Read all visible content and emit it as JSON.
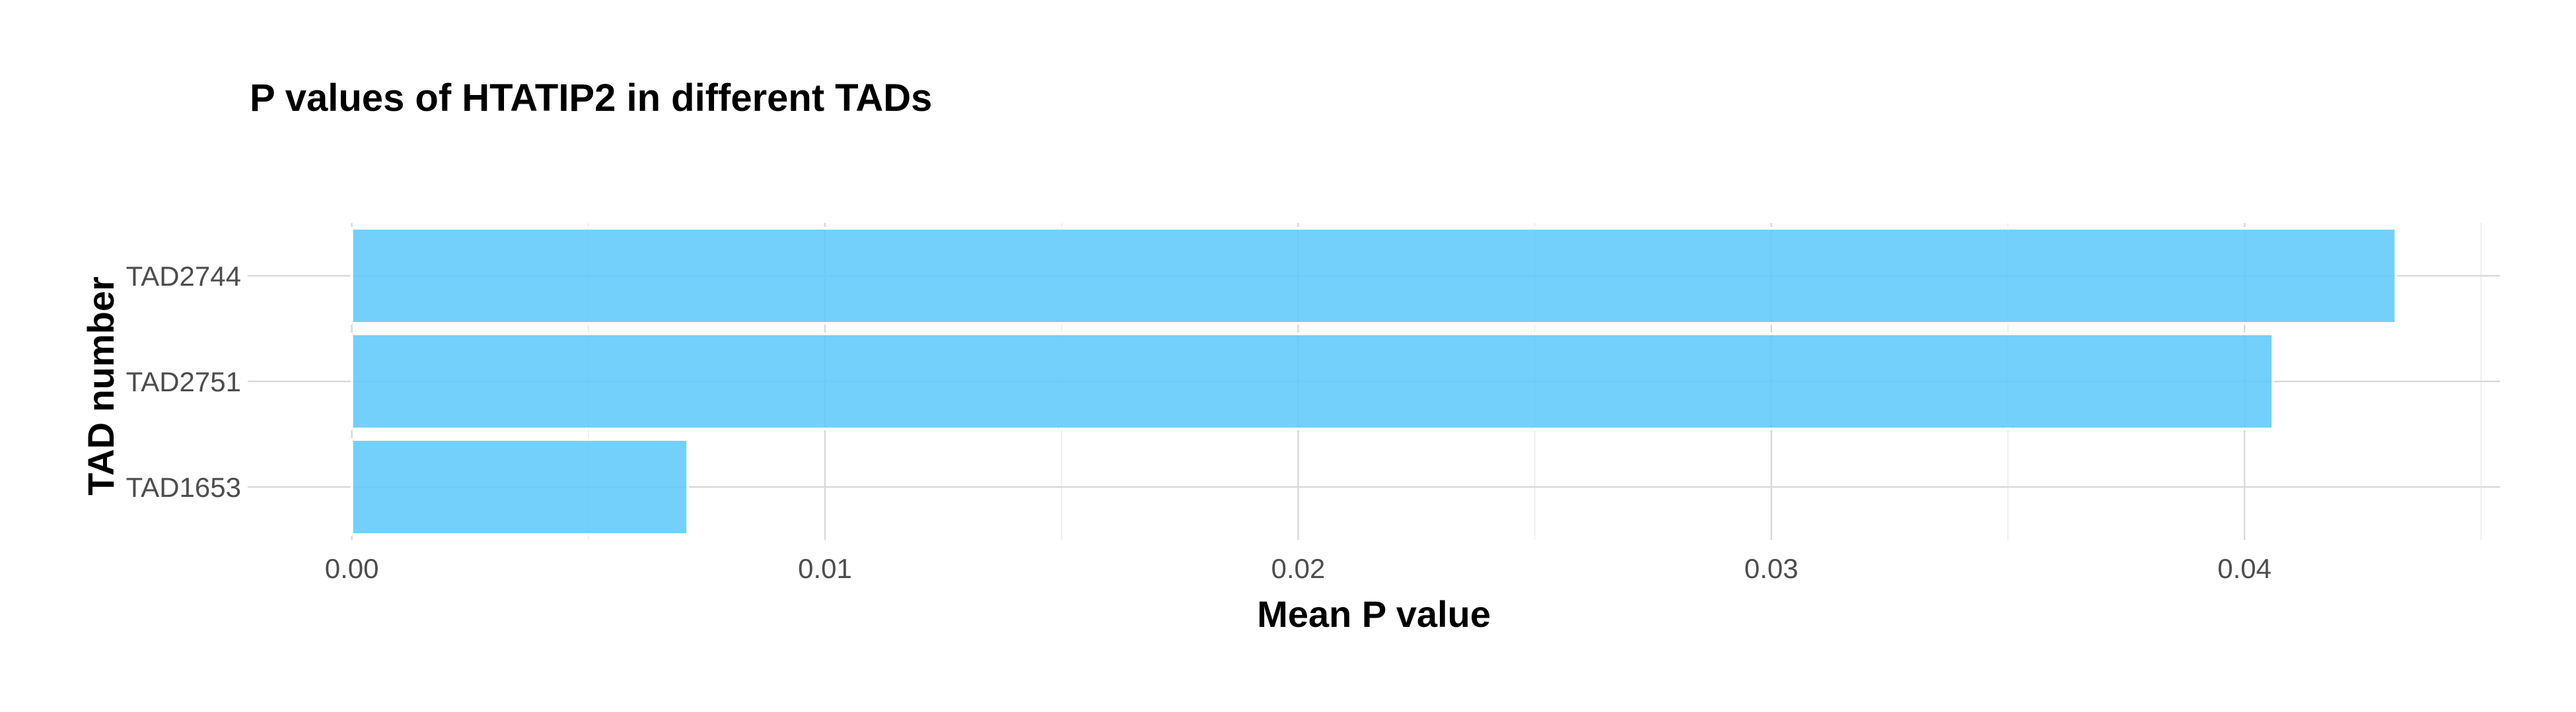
{
  "chart_data": {
    "type": "bar",
    "orientation": "horizontal",
    "title": "P values of HTATIP2 in different TADs",
    "xlabel": "Mean P value",
    "ylabel": "TAD number",
    "categories": [
      "TAD2744",
      "TAD2751",
      "TAD1653"
    ],
    "values": [
      0.0432,
      0.0406,
      0.0071
    ],
    "xlim": [
      -0.0022,
      0.0454
    ],
    "x_ticks": [
      0.0,
      0.01,
      0.02,
      0.03,
      0.04
    ],
    "x_tick_labels": [
      "0.00",
      "0.01",
      "0.02",
      "0.03",
      "0.04"
    ],
    "x_minor_ticks": [
      0.005,
      0.015,
      0.025,
      0.035,
      0.045
    ],
    "grid": true,
    "legend": "none",
    "bar_color": "#5bc8fa",
    "bar_opacity": 0.85
  }
}
